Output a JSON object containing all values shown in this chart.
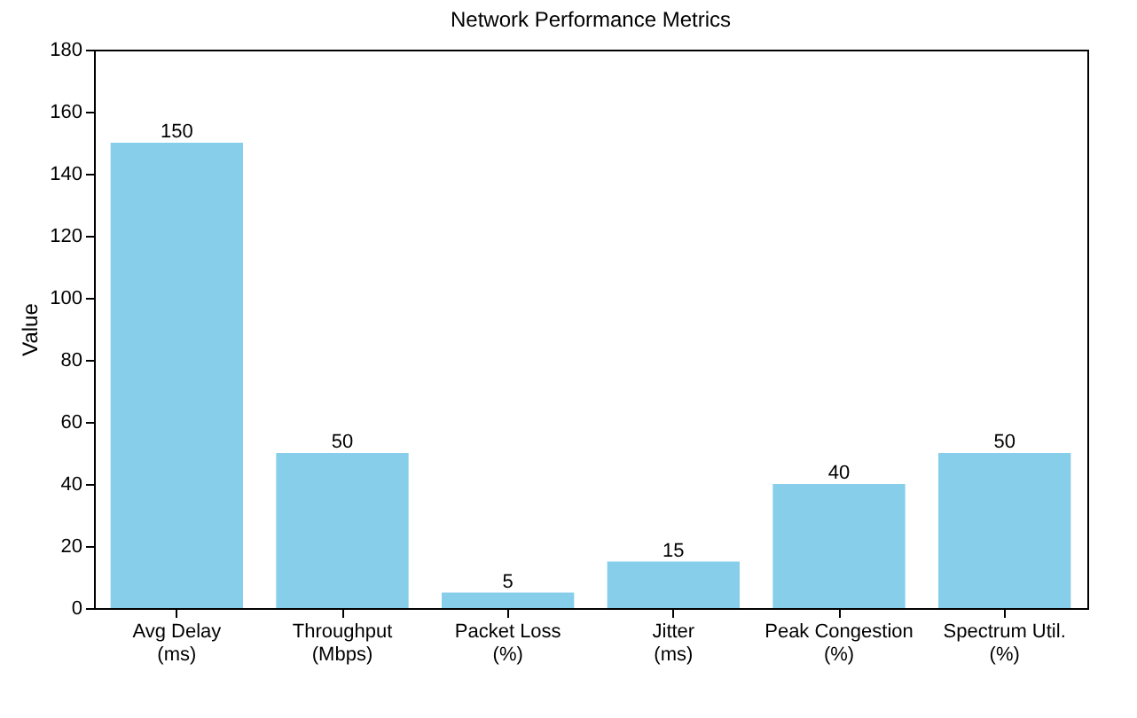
{
  "chart_data": {
    "type": "bar",
    "title": "Network Performance Metrics",
    "ylabel": "Value",
    "categories": [
      "Avg Delay (ms)",
      "Throughput (Mbps)",
      "Packet Loss (%)",
      "Jitter (ms)",
      "Peak Congestion (%)",
      "Spectrum Util. (%)"
    ],
    "values": [
      150,
      50,
      5,
      15,
      40,
      50
    ],
    "color": "#87ceeb",
    "ylim": [
      0,
      180
    ],
    "yticks": [
      0,
      20,
      40,
      60,
      80,
      100,
      120,
      140,
      160,
      180
    ],
    "data_labels": true,
    "grid": false
  }
}
